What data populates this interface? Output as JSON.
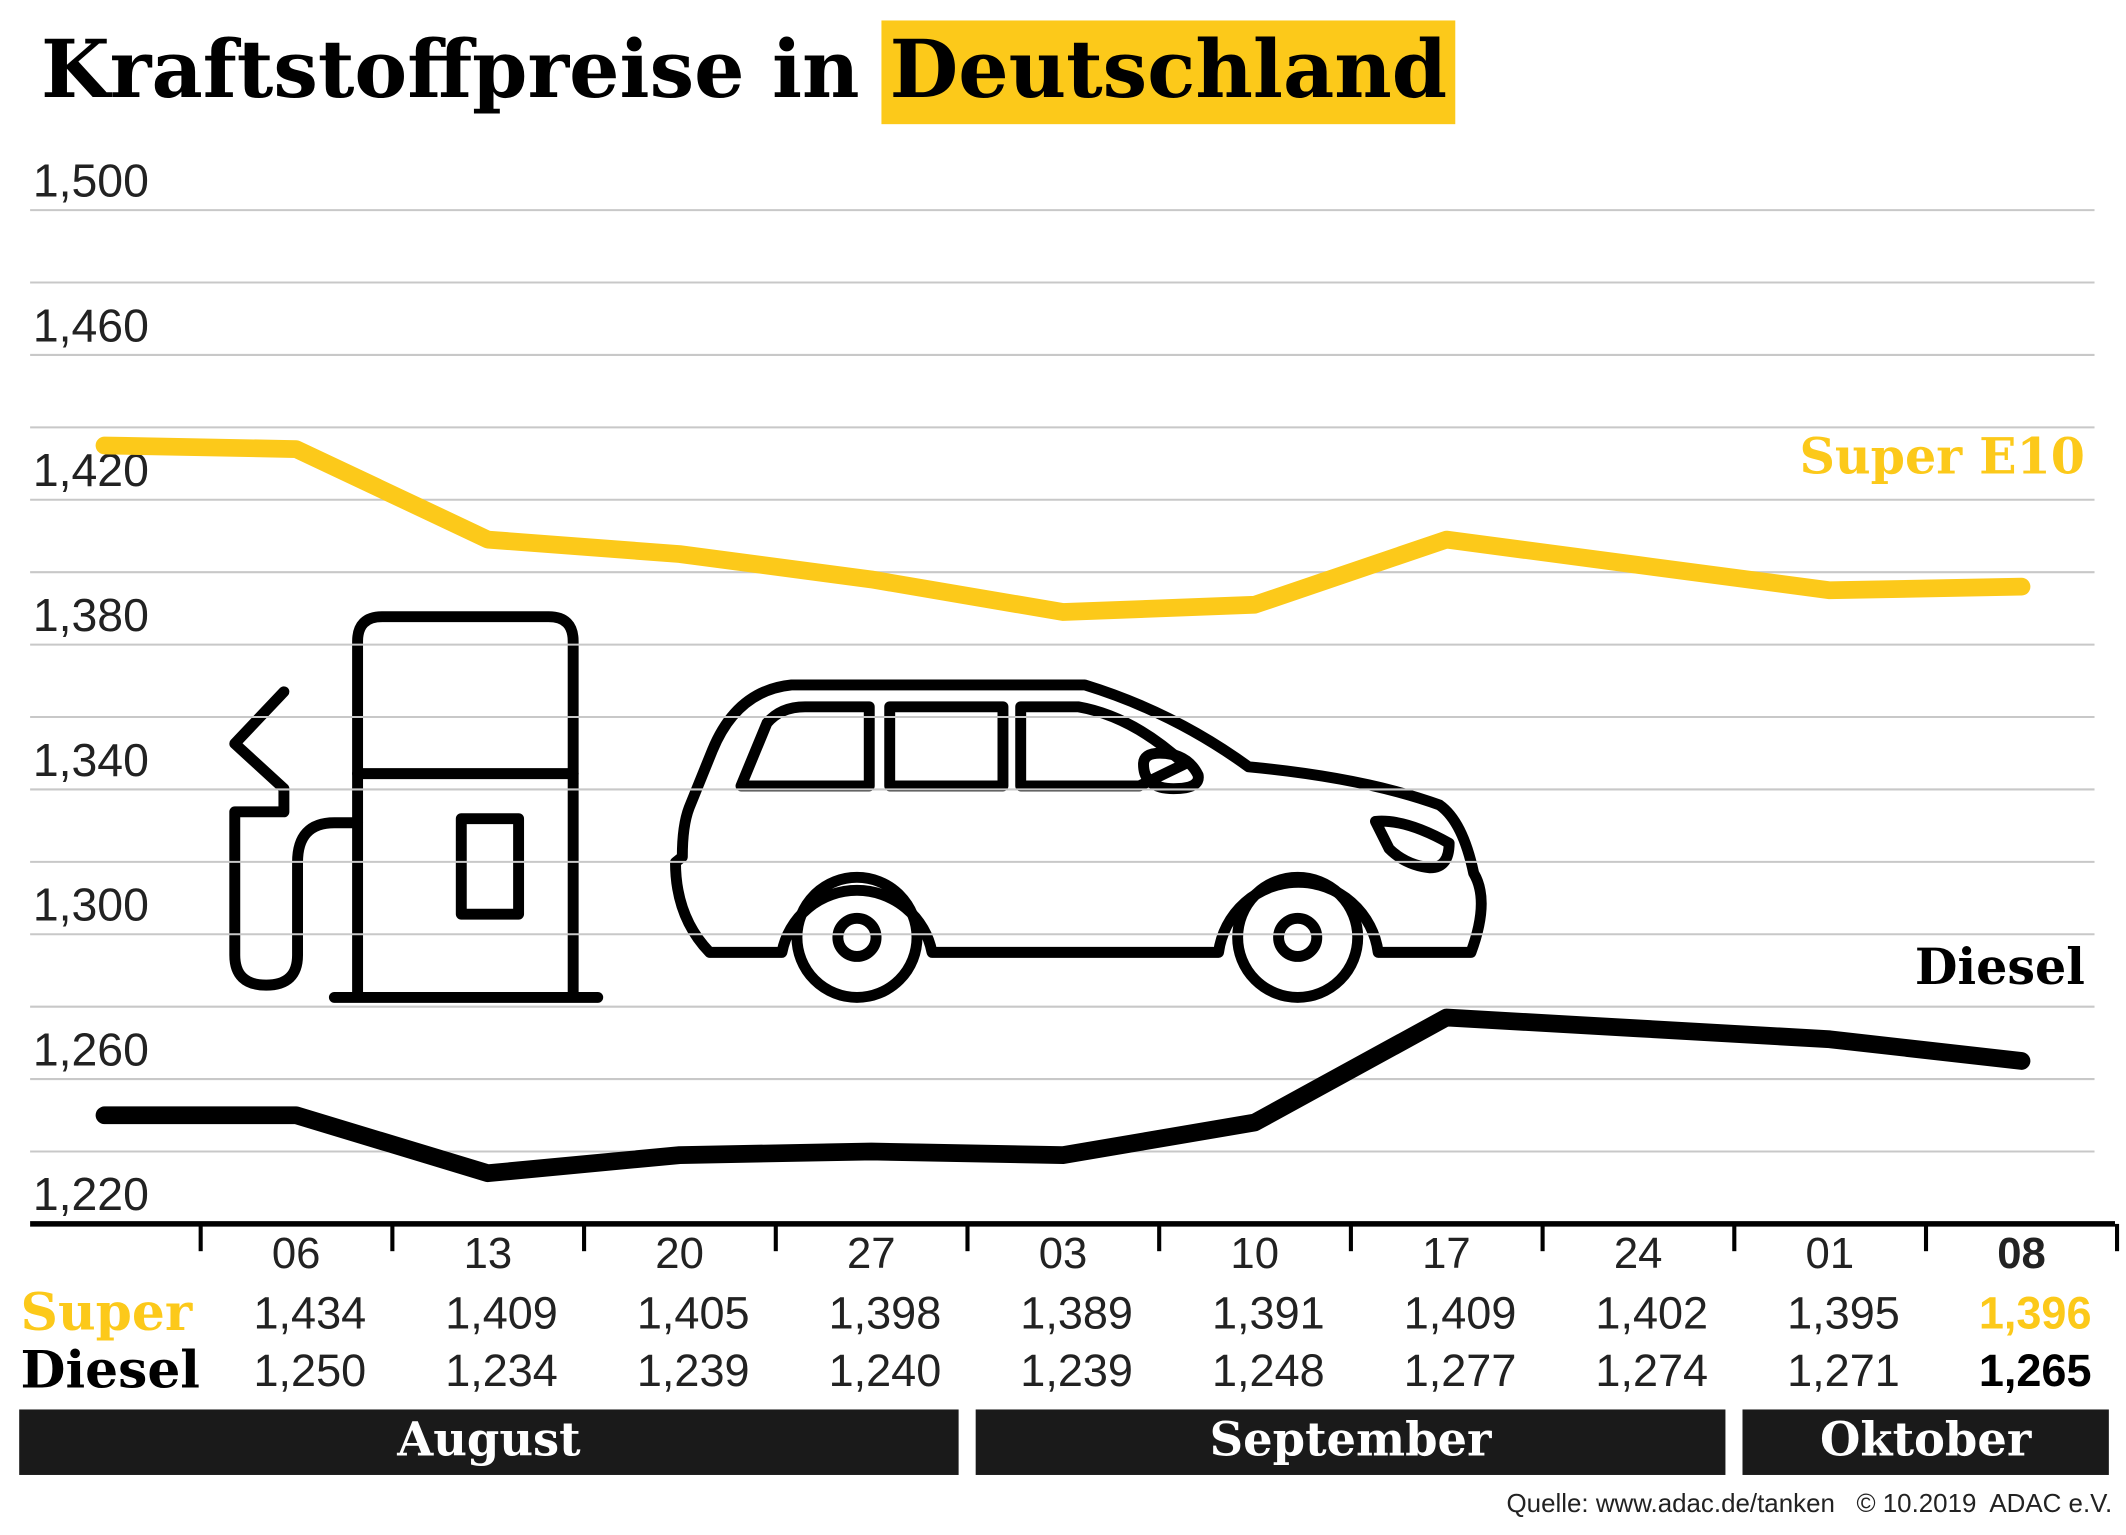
{
  "title": "Kraftstoffpreise in",
  "title_highlight": "Deutschland",
  "chart_data": {
    "type": "line",
    "categories": [
      null,
      "06",
      "13",
      "20",
      "27",
      "03",
      "10",
      "17",
      "24",
      "01",
      "08"
    ],
    "series": [
      {
        "name": "Super E10",
        "color": "#fcc91a",
        "values": [
          1.435,
          1.434,
          1.409,
          1.405,
          1.398,
          1.389,
          1.391,
          1.409,
          1.402,
          1.395,
          1.396
        ],
        "value_labels": [
          null,
          "1,434",
          "1,409",
          "1,405",
          "1,398",
          "1,389",
          "1,391",
          "1,409",
          "1,402",
          "1,395",
          "1,396"
        ]
      },
      {
        "name": "Diesel",
        "color": "#000000",
        "values": [
          1.25,
          1.25,
          1.234,
          1.239,
          1.24,
          1.239,
          1.248,
          1.277,
          1.274,
          1.271,
          1.265
        ],
        "value_labels": [
          null,
          "1,250",
          "1,234",
          "1,239",
          "1,240",
          "1,239",
          "1,248",
          "1,277",
          "1,274",
          "1,271",
          "1,265"
        ]
      }
    ],
    "row_labels": [
      "Super",
      "Diesel"
    ],
    "ylim": [
      1.22,
      1.5
    ],
    "yticks": [
      {
        "value": 1.5,
        "label": "1,500"
      },
      {
        "value": 1.46,
        "label": "1,460"
      },
      {
        "value": 1.42,
        "label": "1,420"
      },
      {
        "value": 1.38,
        "label": "1,380"
      },
      {
        "value": 1.34,
        "label": "1,340"
      },
      {
        "value": 1.3,
        "label": "1,300"
      },
      {
        "value": 1.26,
        "label": "1,260"
      },
      {
        "value": 1.22,
        "label": "1,220"
      }
    ],
    "minor_yticks": [
      1.48,
      1.44,
      1.4,
      1.36,
      1.32,
      1.28,
      1.24
    ],
    "grid": true,
    "months": [
      {
        "label": "August",
        "first": 1,
        "last": 4
      },
      {
        "label": "September",
        "first": 5,
        "last": 8
      },
      {
        "label": "Oktober",
        "first": 9,
        "last": 10
      }
    ]
  },
  "source": "Quelle: www.adac.de/tanken   © 10.2019  ADAC e.V."
}
